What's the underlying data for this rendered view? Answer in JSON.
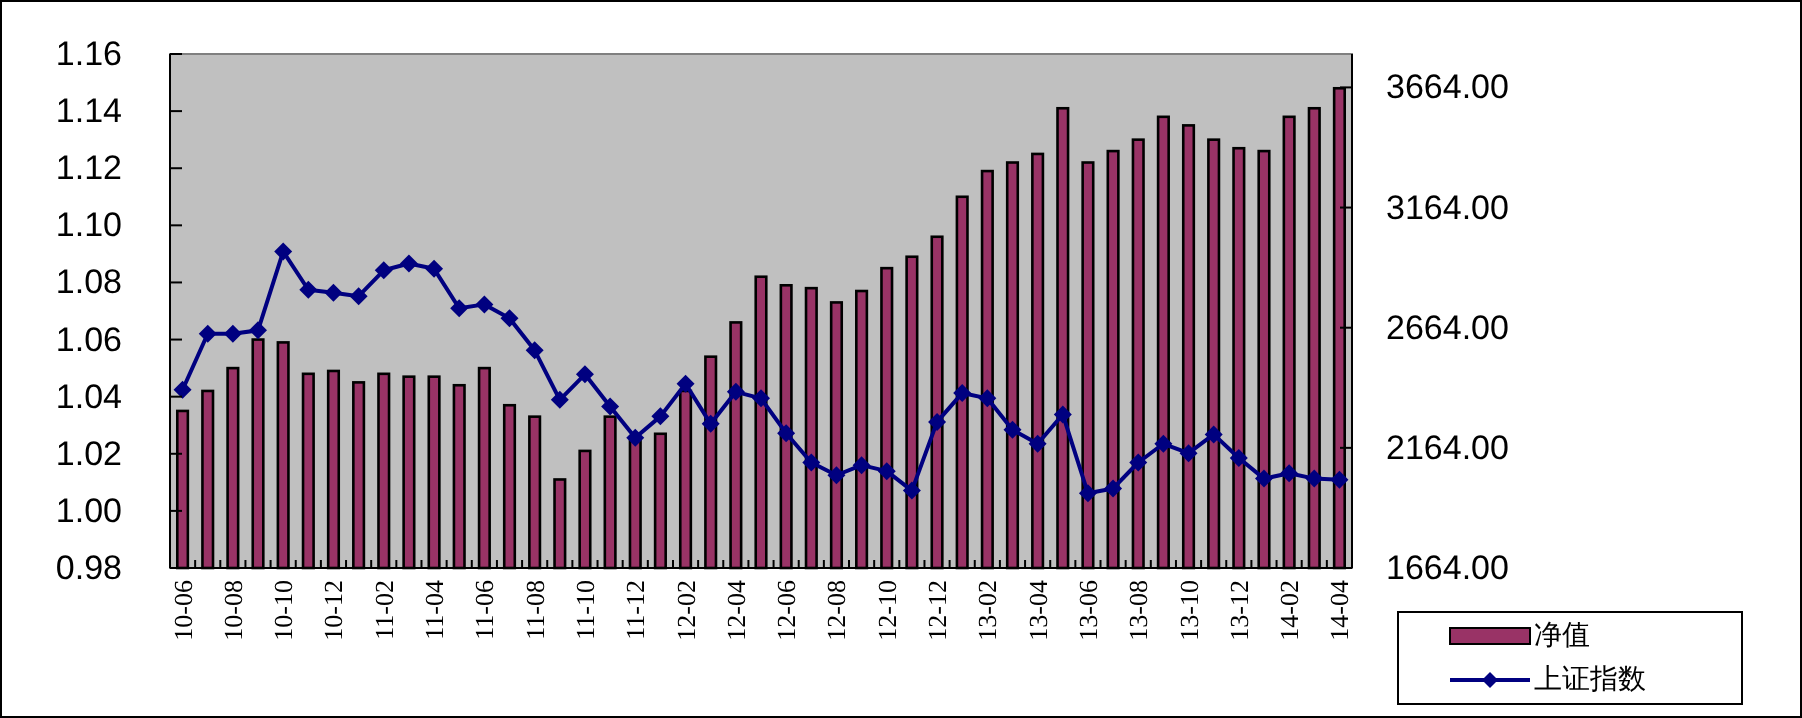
{
  "chart_data": {
    "type": "bar",
    "categories": [
      "10-06",
      null,
      "10-08",
      null,
      "10-10",
      null,
      "10-12",
      null,
      "11-02",
      null,
      "11-04",
      null,
      "11-06",
      null,
      "11-08",
      null,
      "11-10",
      null,
      "11-12",
      null,
      "12-02",
      null,
      "12-04",
      null,
      "12-06",
      null,
      "12-08",
      null,
      "12-10",
      null,
      "12-12",
      null,
      "13-02",
      null,
      "13-04",
      null,
      "13-06",
      null,
      "13-08",
      null,
      "13-10",
      null,
      "13-12",
      null,
      "14-02",
      null,
      "14-04"
    ],
    "series": [
      {
        "name": "净值",
        "color": "#993366",
        "values": [
          1.035,
          1.042,
          1.05,
          1.06,
          1.059,
          1.048,
          1.049,
          1.045,
          1.048,
          1.047,
          1.047,
          1.044,
          1.05,
          1.037,
          1.033,
          1.011,
          1.021,
          1.033,
          1.025,
          1.027,
          1.042,
          1.054,
          1.066,
          1.082,
          1.079,
          1.078,
          1.073,
          1.077,
          1.085,
          1.089,
          1.096,
          1.11,
          1.119,
          1.122,
          1.125,
          1.141,
          1.122,
          1.126,
          1.13,
          1.138,
          1.135,
          1.13,
          1.127,
          1.126,
          1.138,
          1.141,
          1.148
        ]
      },
      {
        "name": "上证指数",
        "type": "line",
        "axis": "y2",
        "color": "#000080",
        "marker": "diamond",
        "values": [
          2406,
          2639,
          2639,
          2653,
          2981,
          2822,
          2809,
          2795,
          2903,
          2931,
          2909,
          2745,
          2761,
          2703,
          2570,
          2364,
          2470,
          2336,
          2206,
          2295,
          2431,
          2264,
          2397,
          2370,
          2225,
          2103,
          2050,
          2092,
          2067,
          1986,
          2272,
          2392,
          2370,
          2239,
          2181,
          2303,
          1975,
          1995,
          2103,
          2181,
          2142,
          2220,
          2122,
          2036,
          2058,
          2036,
          2031
        ]
      }
    ],
    "ylim": [
      0.98,
      1.16
    ],
    "yticks": [
      0.98,
      {
        "value": 1,
        "label": "1.00"
      },
      1.02,
      1.04,
      1.06,
      1.08,
      {
        "value": 1.1,
        "label": "1.10"
      },
      1.12,
      1.14,
      1.16
    ],
    "y2lim": [
      1664,
      3803
    ],
    "y2ticks": [
      {
        "value": 1664,
        "label": "1664.00"
      },
      {
        "value": 2164,
        "label": "2164.00"
      },
      {
        "value": 2664,
        "label": "2664.00"
      },
      {
        "value": 3164,
        "label": "3164.00"
      },
      {
        "value": 3664,
        "label": "3664.00"
      }
    ],
    "legend": "bottom right"
  }
}
